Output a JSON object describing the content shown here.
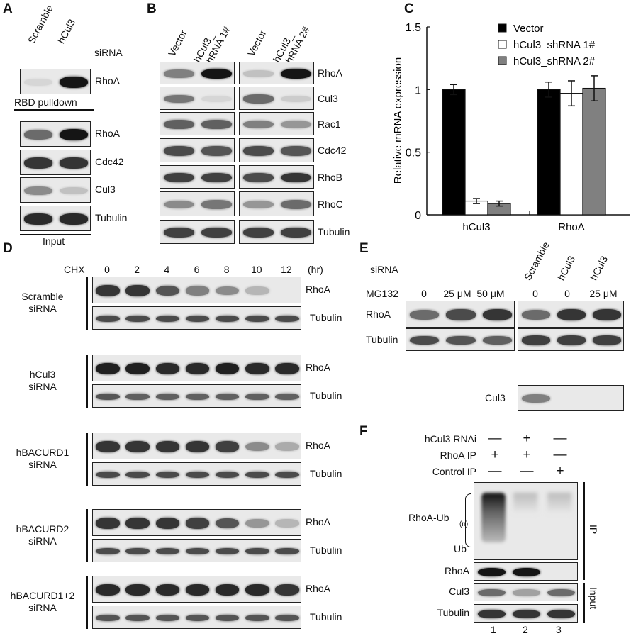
{
  "panels": {
    "A": {
      "label": "A",
      "columns": [
        "Scramble",
        "hCul3"
      ],
      "row_header": "siRNA",
      "pulldown": {
        "rows": [
          {
            "label": "RhoA",
            "bands": [
              0.05,
              0.95
            ]
          }
        ],
        "caption": "RBD pulldown"
      },
      "input": {
        "rows": [
          {
            "label": "RhoA",
            "bands": [
              0.55,
              0.95
            ]
          },
          {
            "label": "Cdc42",
            "bands": [
              0.8,
              0.8
            ]
          },
          {
            "label": "Cul3",
            "bands": [
              0.4,
              0.15
            ]
          },
          {
            "label": "Tubulin",
            "bands": [
              0.85,
              0.85
            ]
          }
        ],
        "caption": "Input"
      }
    },
    "B": {
      "label": "B",
      "columns": [
        "Vector",
        "hCul3_\nshRNA 1#",
        "Vector",
        "hCul3_\nshRNA 2#"
      ],
      "rows": [
        {
          "label": "RhoA",
          "bands": [
            0.45,
            0.95,
            0.15,
            0.95
          ]
        },
        {
          "label": "Cul3",
          "bands": [
            0.5,
            0.05,
            0.55,
            0.1
          ]
        },
        {
          "label": "Rac1",
          "bands": [
            0.6,
            0.6,
            0.45,
            0.35
          ]
        },
        {
          "label": "Cdc42",
          "bands": [
            0.7,
            0.65,
            0.7,
            0.65
          ]
        },
        {
          "label": "RhoB",
          "bands": [
            0.75,
            0.75,
            0.7,
            0.8
          ]
        },
        {
          "label": "RhoC",
          "bands": [
            0.4,
            0.5,
            0.35,
            0.55
          ]
        },
        {
          "label": "Tubulin",
          "bands": [
            0.75,
            0.75,
            0.75,
            0.75
          ]
        }
      ]
    },
    "D": {
      "label": "D",
      "row_header": "CHX",
      "timepoints": [
        "0",
        "2",
        "4",
        "6",
        "8",
        "10",
        "12"
      ],
      "unit": "(hr)",
      "groups": [
        {
          "name": "Scramble\nsiRNA",
          "rows": [
            {
              "label": "RhoA",
              "bands": [
                0.8,
                0.8,
                0.65,
                0.45,
                0.4,
                0.2,
                0
              ]
            },
            {
              "label": "Tubulin",
              "bands": [
                0.7,
                0.7,
                0.7,
                0.7,
                0.7,
                0.7,
                0.7
              ]
            }
          ]
        },
        {
          "name": "hCul3\nsiRNA",
          "rows": [
            {
              "label": "RhoA",
              "bands": [
                0.9,
                0.9,
                0.85,
                0.85,
                0.9,
                0.85,
                0.85
              ]
            },
            {
              "label": "Tubulin",
              "bands": [
                0.65,
                0.6,
                0.6,
                0.6,
                0.6,
                0.6,
                0.6
              ]
            }
          ]
        },
        {
          "name": "hBACURD1\nsiRNA",
          "rows": [
            {
              "label": "RhoA",
              "bands": [
                0.8,
                0.8,
                0.8,
                0.8,
                0.75,
                0.4,
                0.25
              ]
            },
            {
              "label": "Tubulin",
              "bands": [
                0.7,
                0.7,
                0.7,
                0.7,
                0.7,
                0.7,
                0.7
              ]
            }
          ]
        },
        {
          "name": "hBACURD2\nsiRNA",
          "rows": [
            {
              "label": "RhoA",
              "bands": [
                0.8,
                0.8,
                0.8,
                0.75,
                0.65,
                0.35,
                0.2
              ]
            },
            {
              "label": "Tubulin",
              "bands": [
                0.7,
                0.7,
                0.7,
                0.7,
                0.7,
                0.7,
                0.7
              ]
            }
          ]
        },
        {
          "name": "hBACURD1+2\nsiRNA",
          "rows": [
            {
              "label": "RhoA",
              "bands": [
                0.85,
                0.85,
                0.85,
                0.85,
                0.85,
                0.85,
                0.8
              ]
            },
            {
              "label": "Tubulin",
              "bands": [
                0.65,
                0.65,
                0.65,
                0.65,
                0.65,
                0.65,
                0.65
              ]
            }
          ]
        }
      ]
    },
    "E": {
      "label": "E",
      "siRNA_label": "siRNA",
      "mg132_label": "MG132",
      "columns": [
        "Scramble",
        "hCul3",
        "hCul3"
      ],
      "siRNA_left": [
        "—",
        "—",
        "—"
      ],
      "mg132_values": [
        "0",
        "25 μM",
        "50 μM",
        "0",
        "0",
        "25 μM"
      ],
      "rows": [
        {
          "label": "RhoA",
          "bands": [
            0.55,
            0.7,
            0.8,
            0.55,
            0.8,
            0.8
          ]
        },
        {
          "label": "Tubulin",
          "bands": [
            0.7,
            0.65,
            0.6,
            0.75,
            0.75,
            0.75
          ]
        }
      ],
      "cul3": {
        "label": "Cul3",
        "bands": [
          0.45,
          0,
          0
        ]
      }
    },
    "F": {
      "label": "F",
      "conditions": [
        {
          "label": "hCul3 RNAi",
          "values": [
            "—",
            "+",
            "—"
          ]
        },
        {
          "label": "RhoA IP",
          "values": [
            "+",
            "+",
            "—"
          ]
        },
        {
          "label": "Control IP",
          "values": [
            "—",
            "—",
            "+"
          ]
        }
      ],
      "ub_label": "RhoA-Ub",
      "ub_sub": "(n)",
      "ub_bottom": "Ub",
      "rows": [
        {
          "label": "RhoA",
          "bands": [
            0.95,
            0.95,
            0
          ]
        },
        {
          "label": "Cul3",
          "bands": [
            0.55,
            0.3,
            0.55
          ]
        },
        {
          "label": "Tubulin",
          "bands": [
            0.8,
            0.8,
            0.8
          ]
        }
      ],
      "ip_label": "IP",
      "input_label": "Input",
      "lanes": [
        "1",
        "2",
        "3"
      ]
    }
  },
  "chart_data": {
    "type": "bar",
    "panel_label": "C",
    "categories": [
      "hCul3",
      "RhoA"
    ],
    "series": [
      {
        "name": "Vector",
        "values": [
          1.0,
          1.0
        ],
        "errors": [
          0.04,
          0.06
        ],
        "color": "#000000"
      },
      {
        "name": "hCul3_shRNA 1#",
        "values": [
          0.11,
          0.97
        ],
        "errors": [
          0.02,
          0.1
        ],
        "color": "#ffffff"
      },
      {
        "name": "hCul3_shRNA 2#",
        "values": [
          0.09,
          1.01
        ],
        "errors": [
          0.02,
          0.1
        ],
        "color": "#808080"
      }
    ],
    "ylabel": "Relative mRNA expression",
    "ylim": [
      0,
      1.5
    ],
    "yticks": [
      "0",
      "0.5",
      "1",
      "1.5"
    ],
    "grid": false,
    "legend": "top-right"
  }
}
